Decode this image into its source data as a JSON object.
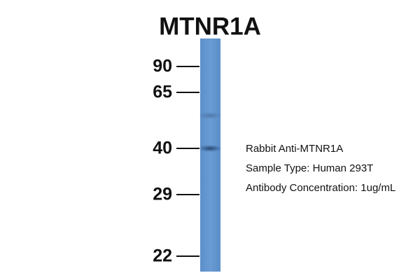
{
  "title": "MTNR1A",
  "markers": [
    "90",
    "65",
    "40",
    "29",
    "22"
  ],
  "info": [
    "Rabbit Anti-MTNR1A",
    "Sample Type: Human 293T",
    "Antibody Concentration: 1ug/mL"
  ]
}
